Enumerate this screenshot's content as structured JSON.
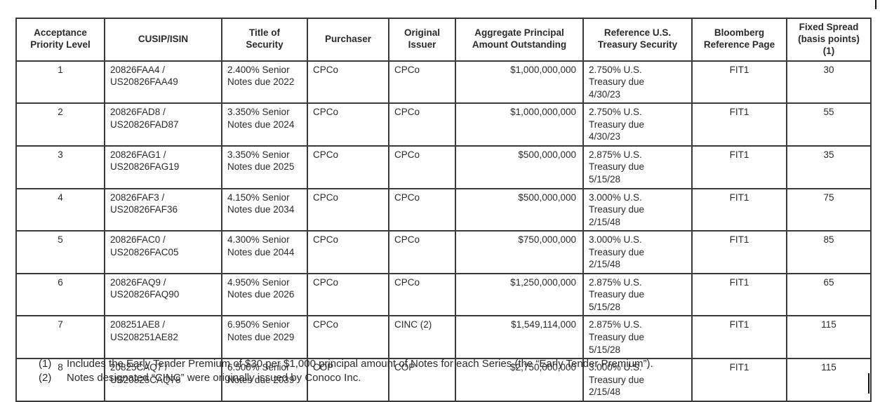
{
  "document": {
    "background_color": "#ffffff",
    "text_color": "#2a2a2a",
    "border_color": "#3a3a3a"
  },
  "table": {
    "columns": [
      {
        "label": "Acceptance\nPriority Level",
        "align": "center"
      },
      {
        "label": "CUSIP/ISIN",
        "align": "left"
      },
      {
        "label": "Title of\nSecurity",
        "align": "left"
      },
      {
        "label": "Purchaser",
        "align": "left"
      },
      {
        "label": "Original\nIssuer",
        "align": "left"
      },
      {
        "label": "Aggregate Principal\nAmount Outstanding",
        "align": "right"
      },
      {
        "label": "Reference U.S.\nTreasury Security",
        "align": "left"
      },
      {
        "label": "Bloomberg\nReference Page",
        "align": "center"
      },
      {
        "label": "Fixed Spread\n(basis points)\n(1)",
        "align": "center"
      }
    ],
    "rows": [
      [
        "1",
        "20826FAA4 /\nUS20826FAA49",
        "2.400% Senior\nNotes due 2022",
        "CPCo",
        "CPCo",
        "$1,000,000,000",
        "2.750% U.S.\nTreasury due\n4/30/23",
        "FIT1",
        "30"
      ],
      [
        "2",
        "20826FAD8 /\nUS20826FAD87",
        "3.350% Senior\nNotes due 2024",
        "CPCo",
        "CPCo",
        "$1,000,000,000",
        "2.750% U.S.\nTreasury due\n4/30/23",
        "FIT1",
        "55"
      ],
      [
        "3",
        "20826FAG1 /\nUS20826FAG19",
        "3.350% Senior\nNotes due 2025",
        "CPCo",
        "CPCo",
        "$500,000,000",
        "2.875% U.S.\nTreasury due\n5/15/28",
        "FIT1",
        "35"
      ],
      [
        "4",
        "20826FAF3 /\nUS20826FAF36",
        "4.150% Senior\nNotes due 2034",
        "CPCo",
        "CPCo",
        "$500,000,000",
        "3.000% U.S.\nTreasury due\n2/15/48",
        "FIT1",
        "75"
      ],
      [
        "5",
        "20826FAC0 /\nUS20826FAC05",
        "4.300% Senior\nNotes due 2044",
        "CPCo",
        "CPCo",
        "$750,000,000",
        "3.000% U.S.\nTreasury due\n2/15/48",
        "FIT1",
        "85"
      ],
      [
        "6",
        "20826FAQ9 /\nUS20826FAQ90",
        "4.950% Senior\nNotes due 2026",
        "CPCo",
        "CPCo",
        "$1,250,000,000",
        "2.875% U.S.\nTreasury due\n5/15/28",
        "FIT1",
        "65"
      ],
      [
        "7",
        "208251AE8 /\nUS208251AE82",
        "6.950% Senior\nNotes due 2029",
        "CPCo",
        "CINC (2)",
        "$1,549,114,000",
        "2.875% U.S.\nTreasury due\n5/15/28",
        "FIT1",
        "115"
      ],
      [
        "8",
        "20825CAQ7 /\nUS20825CAQ78",
        "6.500% Senior\nNotes due 2039",
        "COP",
        "COP",
        "$2,750,000,000",
        "3.000% U.S.\nTreasury due\n2/15/48",
        "FIT1",
        "115"
      ]
    ]
  },
  "footnotes": [
    {
      "marker": "(1)",
      "text": "Includes the Early Tender Premium of $30 per $1,000 principal amount of Notes for each Series (the “Early Tender Premium”)."
    },
    {
      "marker": "(2)",
      "text": "Notes designated “CINC” were originally issued by Conoco Inc."
    }
  ]
}
